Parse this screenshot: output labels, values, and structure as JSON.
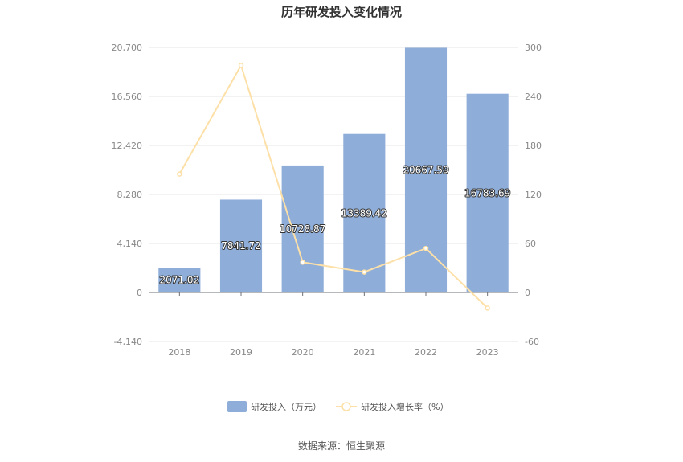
{
  "chart_data": {
    "type": "bar",
    "title": "历年研发投入变化情况",
    "categories": [
      "2018",
      "2019",
      "2020",
      "2021",
      "2022",
      "2023"
    ],
    "series": [
      {
        "name": "研发投入（万元）",
        "type": "bar",
        "axis": "left",
        "color": "#8eadd8",
        "values": [
          2071.02,
          7841.72,
          10728.87,
          13389.42,
          20667.59,
          16783.69
        ],
        "labels": [
          "2071.02",
          "7841.72",
          "10728.87",
          "13389.42",
          "20667.59",
          "16783.69"
        ]
      },
      {
        "name": "研发投入增长率（%）",
        "type": "line",
        "axis": "right",
        "color": "#fde0a8",
        "values": [
          145,
          278,
          37,
          25,
          54,
          -19
        ]
      }
    ],
    "y_left": {
      "min": -4140,
      "max": 20700,
      "ticks": [
        "-4,140",
        "0",
        "4,140",
        "8,280",
        "12,420",
        "16,560",
        "20,700"
      ],
      "tick_values": [
        -4140,
        0,
        4140,
        8280,
        12420,
        16560,
        20700
      ]
    },
    "y_right": {
      "min": -60,
      "max": 300,
      "ticks": [
        "-60",
        "0",
        "60",
        "120",
        "180",
        "240",
        "300"
      ],
      "tick_values": [
        -60,
        0,
        60,
        120,
        180,
        240,
        300
      ]
    },
    "grid": true,
    "legend": "bottom-center"
  },
  "source": "数据来源：恒生聚源"
}
